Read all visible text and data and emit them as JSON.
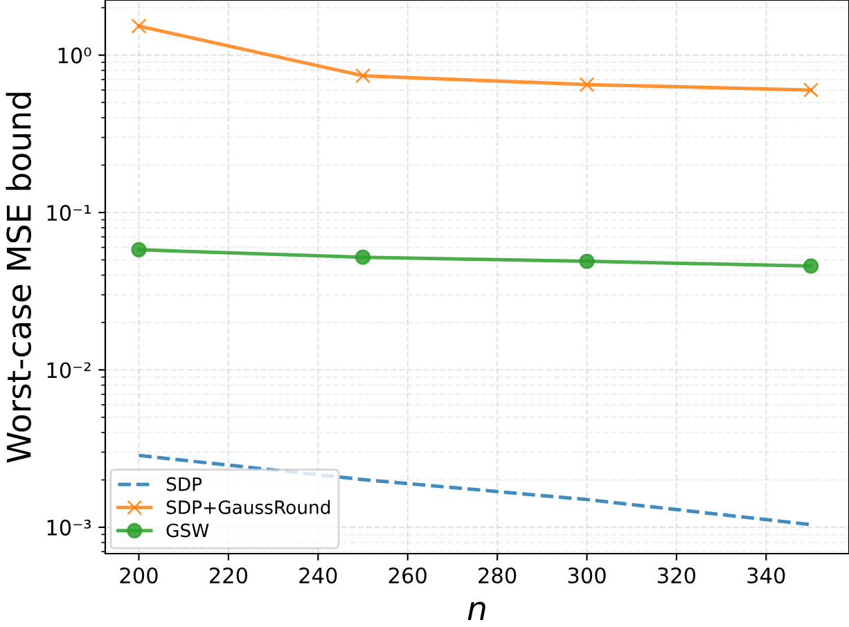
{
  "chart_data": {
    "type": "line",
    "xlabel": "n",
    "ylabel": "Worst-case MSE bound",
    "x": [
      200,
      250,
      300,
      350
    ],
    "series": [
      {
        "name": "SDP",
        "color": "#1f77b4",
        "values": [
          0.00286,
          0.00201,
          0.0015,
          0.00104
        ],
        "line_style": "dashed",
        "marker": "none"
      },
      {
        "name": "SDP+GaussRound",
        "color": "#ff7f0e",
        "values": [
          1.53,
          0.74,
          0.65,
          0.6
        ],
        "line_style": "solid",
        "marker": "cross"
      },
      {
        "name": "GSW",
        "color": "#2ca02c",
        "values": [
          0.058,
          0.052,
          0.049,
          0.0457
        ],
        "line_style": "solid",
        "marker": "circle"
      }
    ],
    "log": "y",
    "xlim": [
      192.5,
      358.5
    ],
    "ylim": [
      0.00068,
      2.24
    ],
    "xticks": [
      200,
      220,
      240,
      260,
      280,
      300,
      320,
      340
    ],
    "yticks": [
      {
        "value": 0.001,
        "label": "10⁻³"
      },
      {
        "value": 0.01,
        "label": "10⁻²"
      },
      {
        "value": 0.1,
        "label": "10⁻¹"
      },
      {
        "value": 1,
        "label": "10⁰"
      }
    ],
    "grid": true,
    "legend": "bottom left"
  }
}
